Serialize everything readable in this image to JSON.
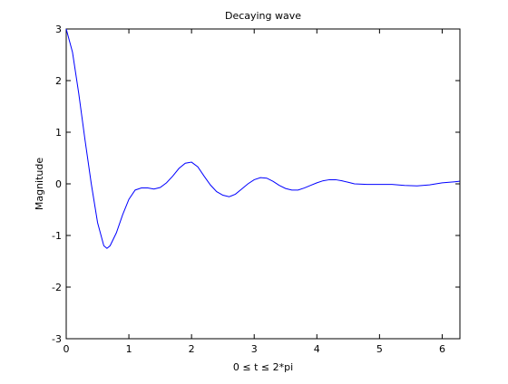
{
  "chart_data": {
    "type": "line",
    "title": "Decaying wave",
    "xlabel": "0 ≤ t ≤ 2*pi",
    "ylabel": "Magnitude",
    "x": [
      0,
      0.1,
      0.2,
      0.3,
      0.4,
      0.5,
      0.6,
      0.65,
      0.7,
      0.8,
      0.9,
      1.0,
      1.1,
      1.2,
      1.3,
      1.4,
      1.5,
      1.6,
      1.7,
      1.8,
      1.9,
      2.0,
      2.1,
      2.2,
      2.3,
      2.4,
      2.5,
      2.6,
      2.7,
      2.8,
      2.9,
      3.0,
      3.1,
      3.2,
      3.3,
      3.4,
      3.5,
      3.6,
      3.7,
      3.8,
      3.9,
      4.0,
      4.1,
      4.2,
      4.3,
      4.4,
      4.5,
      4.6,
      4.8,
      5.0,
      5.2,
      5.4,
      5.6,
      5.8,
      6.0,
      6.2,
      6.28
    ],
    "series": [
      {
        "color": "#0000ff",
        "values": [
          3.0,
          2.55,
          1.75,
          0.85,
          0.0,
          -0.75,
          -1.2,
          -1.25,
          -1.2,
          -0.95,
          -0.6,
          -0.3,
          -0.12,
          -0.08,
          -0.08,
          -0.1,
          -0.07,
          0.02,
          0.15,
          0.3,
          0.4,
          0.42,
          0.33,
          0.15,
          -0.02,
          -0.15,
          -0.22,
          -0.25,
          -0.2,
          -0.1,
          0.0,
          0.08,
          0.12,
          0.11,
          0.05,
          -0.03,
          -0.09,
          -0.12,
          -0.12,
          -0.08,
          -0.03,
          0.02,
          0.06,
          0.08,
          0.08,
          0.06,
          0.03,
          0.0,
          -0.01,
          -0.01,
          -0.01,
          -0.03,
          -0.04,
          -0.02,
          0.02,
          0.04,
          0.05
        ]
      }
    ],
    "xlim": [
      0,
      6.2832
    ],
    "xticks": [
      0,
      1,
      2,
      3,
      4,
      5,
      6
    ],
    "ylim": [
      -3,
      3
    ],
    "yticks": [
      -3,
      -2,
      -1,
      0,
      1,
      2,
      3
    ]
  }
}
